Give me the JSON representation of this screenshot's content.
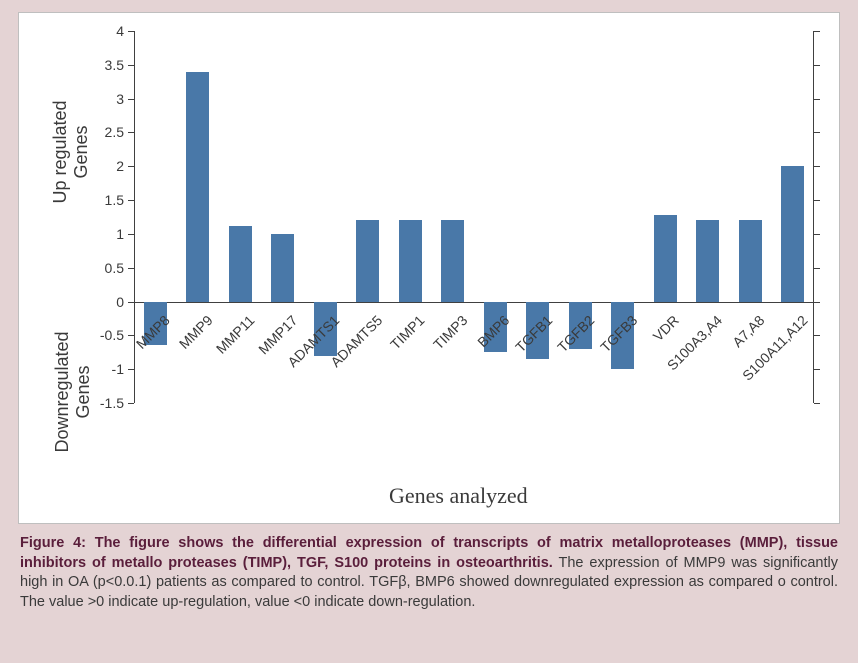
{
  "chart": {
    "type": "bar",
    "categories": [
      "MMP8",
      "MMP9",
      "MMP11",
      "MMP17",
      "ADAMTS1",
      "ADAMTS5",
      "TIMP1",
      "TIMP3",
      "BMP6",
      "TGFB1",
      "TGFB2",
      "TGFB3",
      "VDR",
      "S100A3,A4",
      "A7,A8",
      "S100A11,A12"
    ],
    "values": [
      -0.65,
      3.4,
      1.12,
      1.0,
      -0.8,
      1.2,
      1.2,
      1.2,
      -0.75,
      -0.85,
      -0.7,
      -1.0,
      1.28,
      1.2,
      1.2,
      2.0
    ],
    "bar_color": "#4978a8",
    "background_color": "#ffffff",
    "panel_bg": "#e4d3d4",
    "axis_color": "#404040",
    "text_color": "#3a3a3a",
    "ylim": [
      -1.5,
      4
    ],
    "ytick_step": 0.5,
    "yticks": [
      -1.5,
      -1,
      -0.5,
      0,
      0.5,
      1,
      1.5,
      2,
      2.5,
      3,
      3.5,
      4
    ],
    "ytick_labels": [
      "-1.5",
      "-1",
      "-0.5",
      "0",
      "0.5",
      "1",
      "1.5",
      "2",
      "2.5",
      "3",
      "3.5",
      "4"
    ],
    "y_label_up": "Up regulated\nGenes",
    "y_label_down": "Downregulated\nGenes",
    "x_label": "Genes analyzed",
    "bar_width_ratio": 0.55,
    "tick_fontsize": 14,
    "axis_label_fontsize": 18,
    "x_title_fontsize": 22,
    "caption_fontsize": 14.5
  },
  "caption": {
    "bold": "Figure 4: The figure shows the differential expression of transcripts of matrix metalloproteases (MMP), tissue inhibitors of metallo proteases (TIMP), TGF, S100 proteins in osteoarthritis.",
    "rest": " The expression of MMP9 was significantly high in OA (p<0.0.1) patients as compared to control. TGFβ, BMP6 showed downregulated expression as compared o control. The value >0 indicate up-regulation, value <0 indicate down-regulation."
  }
}
